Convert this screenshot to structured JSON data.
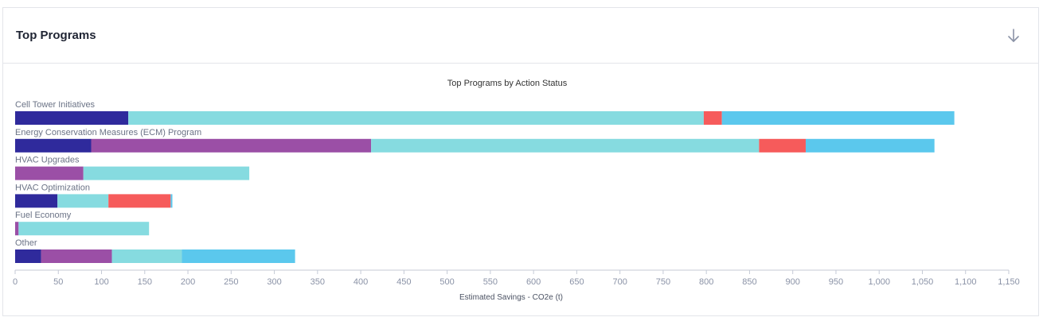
{
  "card": {
    "title": "Top Programs",
    "download_icon": "arrow-down-icon"
  },
  "colors": {
    "series": [
      "#2f2a9c",
      "#9b4fa6",
      "#86dbe0",
      "#f65b5b",
      "#5bc8ed"
    ],
    "axis": "#8a92a6",
    "label": "#6b7386",
    "title": "#333333"
  },
  "chart_data": {
    "type": "bar",
    "orientation": "horizontal",
    "stacked": true,
    "title": "Top Programs by Action Status",
    "xlabel": "Estimated Savings - CO2e (t)",
    "ylabel": "",
    "xlim": [
      0,
      1150
    ],
    "grid": false,
    "legend": "none",
    "categories": [
      "Cell Tower Initiatives",
      "Energy Conservation Measures (ECM) Program",
      "HVAC Upgrades",
      "HVAC Optimization",
      "Fuel Economy",
      "Other"
    ],
    "series": [
      {
        "values": [
          131,
          88,
          0,
          49,
          0,
          30
        ]
      },
      {
        "values": [
          0,
          324,
          79,
          0,
          4,
          82
        ]
      },
      {
        "values": [
          666,
          449,
          192,
          59,
          151,
          81
        ]
      },
      {
        "values": [
          21,
          54,
          0,
          72,
          0,
          0
        ]
      },
      {
        "values": [
          269,
          149,
          0,
          2,
          0,
          131
        ]
      }
    ],
    "x_ticks": [
      "0",
      "50",
      "100",
      "150",
      "200",
      "250",
      "300",
      "350",
      "400",
      "450",
      "500",
      "550",
      "600",
      "650",
      "700",
      "750",
      "800",
      "850",
      "900",
      "950",
      "1,000",
      "1,050",
      "1,100",
      "1,150"
    ]
  }
}
